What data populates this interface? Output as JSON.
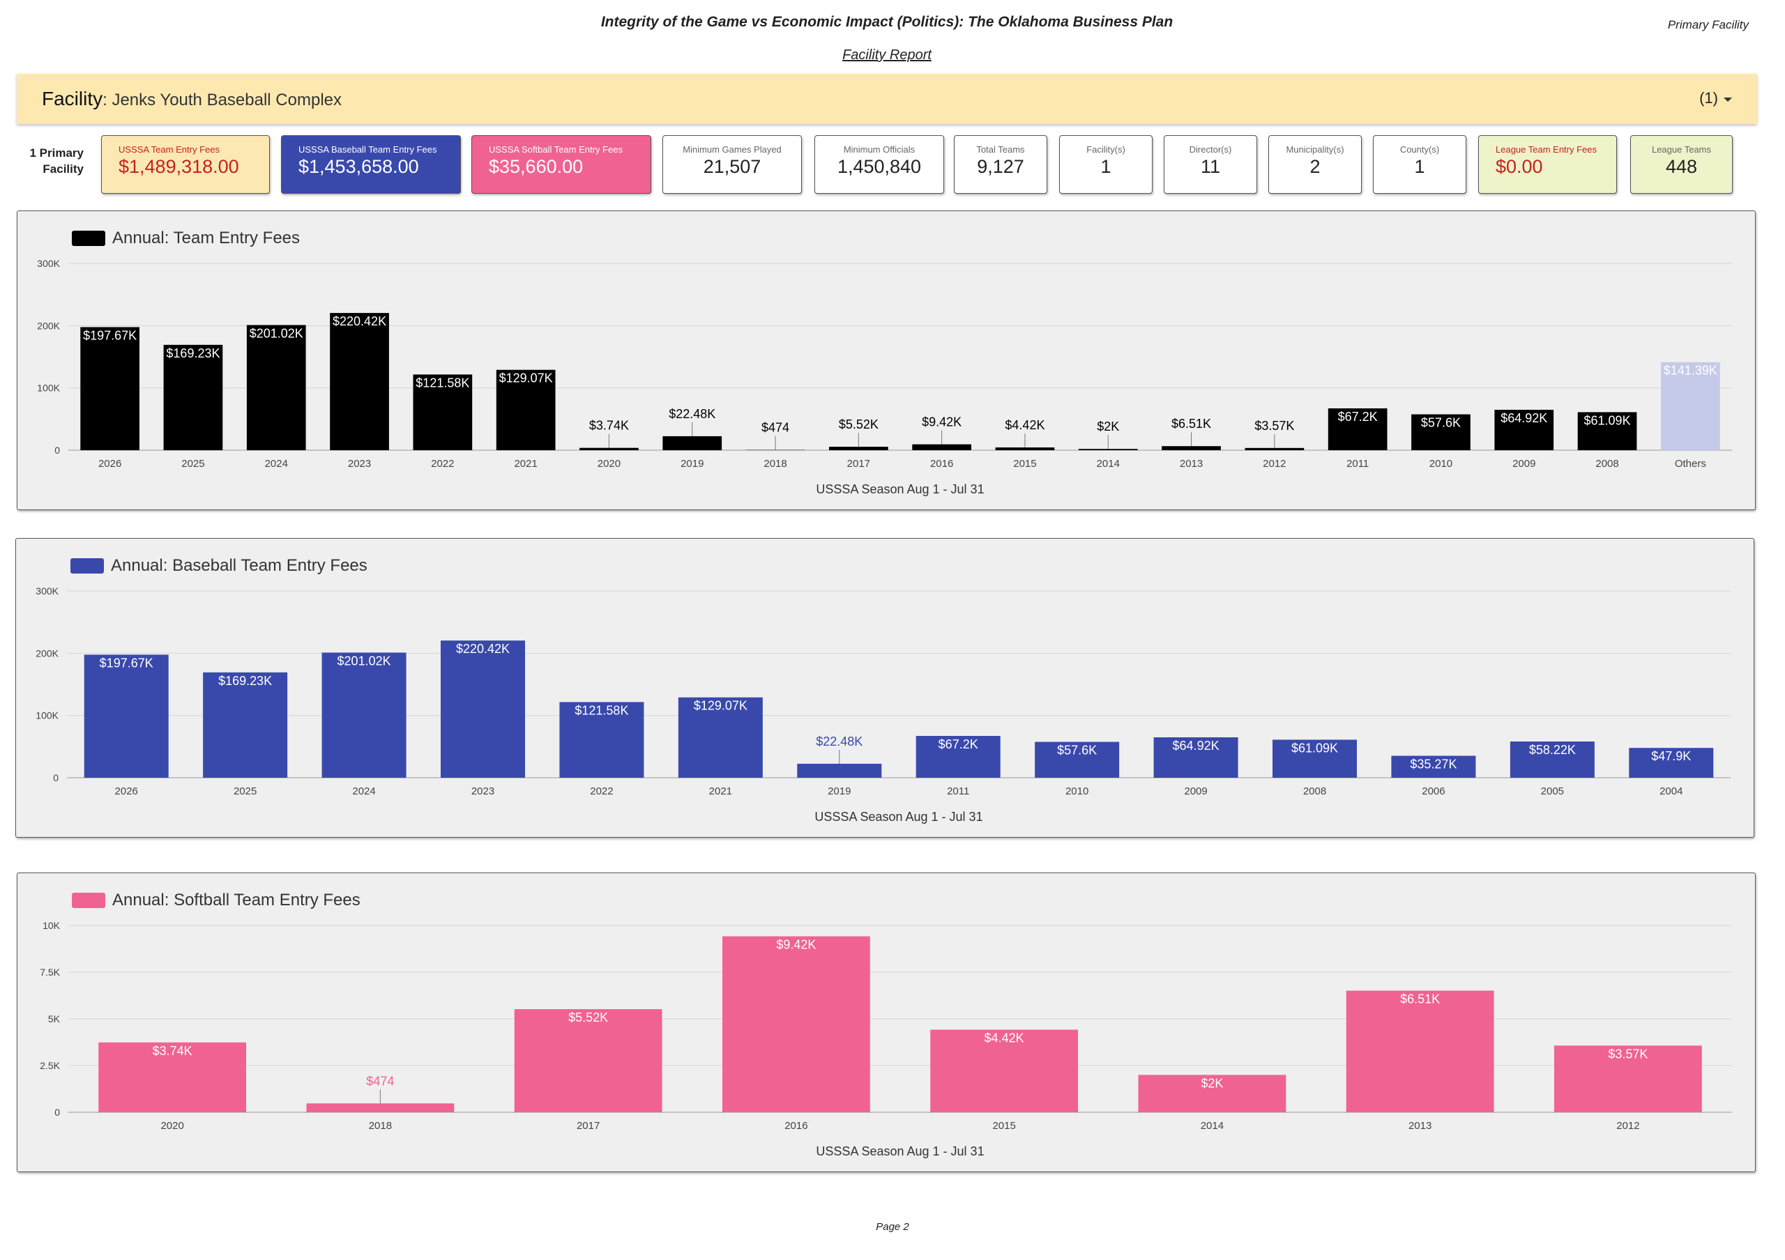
{
  "header": {
    "title": "Integrity of the Game vs Economic Impact (Politics): The Oklahoma Business Plan",
    "subtitle": "Facility Report",
    "corner": "Primary Facility"
  },
  "facility": {
    "label": "Facility",
    "name": ": Jenks Youth Baseball Complex",
    "count": "(1)"
  },
  "side_note": "1 Primary Facility",
  "kpis": [
    {
      "label": "USSSA Team Entry Fees",
      "value": "$1,489,318.00"
    },
    {
      "label": "USSSA Baseball Team Entry Fees",
      "value": "$1,453,658.00"
    },
    {
      "label": "USSSA Softball Team Entry Fees",
      "value": "$35,660.00"
    },
    {
      "label": "Minimum Games Played",
      "value": "21,507"
    },
    {
      "label": "Minimum Officials",
      "value": "1,450,840"
    },
    {
      "label": "Total Teams",
      "value": "9,127"
    },
    {
      "label": "Facility(s)",
      "value": "1"
    },
    {
      "label": "Director(s)",
      "value": "11"
    },
    {
      "label": "Municipality(s)",
      "value": "2"
    },
    {
      "label": "County(s)",
      "value": "1"
    },
    {
      "label": "League Team Entry Fees",
      "value": "$0.00"
    },
    {
      "label": "League Teams",
      "value": "448"
    }
  ],
  "chart_data": [
    {
      "type": "bar",
      "x_label": "USSSA Season Aug 1 - Jul 31",
      "categories": [
        "2026",
        "2025",
        "2024",
        "2023",
        "2022",
        "2021",
        "2020",
        "2019",
        "2018",
        "2017",
        "2016",
        "2015",
        "2014",
        "2013",
        "2012",
        "2011",
        "2010",
        "2009",
        "2008",
        "Others"
      ],
      "series": [
        {
          "name": "Annual: Team Entry Fees",
          "color": "#000000",
          "colors": [
            "#000000",
            "#000000",
            "#000000",
            "#000000",
            "#000000",
            "#000000",
            "#000000",
            "#000000",
            "#000000",
            "#000000",
            "#000000",
            "#000000",
            "#000000",
            "#000000",
            "#000000",
            "#000000",
            "#000000",
            "#000000",
            "#000000",
            "#c5cae9"
          ],
          "values": [
            197670,
            169230,
            201020,
            220420,
            121580,
            129070,
            3740,
            22480,
            474,
            5520,
            9420,
            4420,
            2000,
            6510,
            3570,
            67200,
            57600,
            64920,
            61090,
            141390
          ],
          "value_labels": [
            "$197.67K",
            "$169.23K",
            "$201.02K",
            "$220.42K",
            "$121.58K",
            "$129.07K",
            "$3.74K",
            "$22.48K",
            "$474",
            "$5.52K",
            "$9.42K",
            "$4.42K",
            "$2K",
            "$6.51K",
            "$3.57K",
            "$67.2K",
            "$57.6K",
            "$64.92K",
            "$61.09K",
            "$141.39K"
          ]
        }
      ],
      "ylim": [
        0,
        300000
      ],
      "yticks": [
        0,
        {
          "value": 100000,
          "label": "100K"
        },
        {
          "value": 200000,
          "label": "200K"
        },
        {
          "value": 300000,
          "label": "300K"
        }
      ],
      "grid": true
    },
    {
      "type": "bar",
      "x_label": "USSSA Season Aug 1 - Jul 31",
      "categories": [
        "2026",
        "2025",
        "2024",
        "2023",
        "2022",
        "2021",
        "2019",
        "2011",
        "2010",
        "2009",
        "2008",
        "2006",
        "2005",
        "2004"
      ],
      "series": [
        {
          "name": "Annual: Baseball Team Entry Fees",
          "color": "#3949ab",
          "values": [
            197670,
            169230,
            201020,
            220420,
            121580,
            129070,
            22480,
            67200,
            57600,
            64920,
            61090,
            35270,
            58220,
            47900
          ],
          "value_labels": [
            "$197.67K",
            "$169.23K",
            "$201.02K",
            "$220.42K",
            "$121.58K",
            "$129.07K",
            "$22.48K",
            "$67.2K",
            "$57.6K",
            "$64.92K",
            "$61.09K",
            "$35.27K",
            "$58.22K",
            "$47.9K"
          ]
        }
      ],
      "ylim": [
        0,
        300000
      ],
      "yticks": [
        0,
        {
          "value": 100000,
          "label": "100K"
        },
        {
          "value": 200000,
          "label": "200K"
        },
        {
          "value": 300000,
          "label": "300K"
        }
      ],
      "grid": true
    },
    {
      "type": "bar",
      "x_label": "USSSA Season Aug 1 - Jul 31",
      "categories": [
        "2020",
        "2018",
        "2017",
        "2016",
        "2015",
        "2014",
        "2013",
        "2012"
      ],
      "series": [
        {
          "name": "Annual: Softball Team Entry Fees",
          "color": "#f06292",
          "values": [
            3740,
            474,
            5520,
            9420,
            4420,
            2000,
            6510,
            3570
          ],
          "value_labels": [
            "$3.74K",
            "$474",
            "$5.52K",
            "$9.42K",
            "$4.42K",
            "$2K",
            "$6.51K",
            "$3.57K"
          ]
        }
      ],
      "ylim": [
        0,
        10000
      ],
      "yticks": [
        0,
        {
          "value": 2500,
          "label": "2.5K"
        },
        {
          "value": 5000,
          "label": "5K"
        },
        {
          "value": 7500,
          "label": "7.5K"
        },
        {
          "value": 10000,
          "label": "10K"
        }
      ],
      "grid": true
    }
  ],
  "footer": "Page 2"
}
